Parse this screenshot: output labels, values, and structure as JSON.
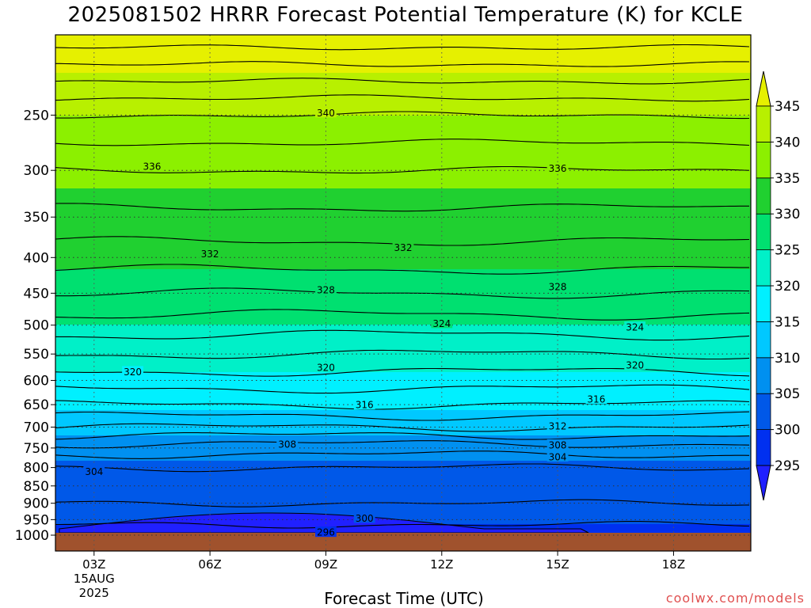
{
  "title": "2025081502 HRRR Forecast Potential Temperature (K) for KCLE",
  "credit": "coolwx.com/models",
  "chart_data": {
    "type": "heatmap",
    "title": "2025081502 HRRR Forecast Potential Temperature (K) for KCLE",
    "xlabel": "Forecast Time (UTC)",
    "ylabel": "",
    "x_ticks": [
      "03Z",
      "06Z",
      "09Z",
      "12Z",
      "15Z",
      "18Z"
    ],
    "x_tick_hours": [
      3,
      6,
      9,
      12,
      15,
      18
    ],
    "x_range_hours": [
      2,
      20
    ],
    "x_date_sublabel": [
      "15AUG",
      "2025"
    ],
    "y_ticks": [
      250,
      300,
      350,
      400,
      450,
      500,
      550,
      600,
      650,
      700,
      750,
      800,
      850,
      900,
      950,
      1000
    ],
    "y_range_hpa": [
      200,
      1000
    ],
    "y_log_scale": true,
    "grid": "dotted",
    "ground_color": "#a0522d",
    "colorbar": {
      "levels": [
        295,
        300,
        305,
        310,
        315,
        320,
        325,
        330,
        335,
        340,
        345
      ],
      "colors": [
        "#2020ff",
        "#0030f0",
        "#0058e8",
        "#0090f0",
        "#00c8ff",
        "#00f0ff",
        "#00f0c8",
        "#00e070",
        "#20d030",
        "#8cf000",
        "#b8f000",
        "#e6f000"
      ],
      "extend": "both"
    },
    "contour_interval": 2,
    "theta_profile": [
      {
        "p": 200,
        "theta": 348
      },
      {
        "p": 250,
        "theta": 340
      },
      {
        "p": 300,
        "theta": 336
      },
      {
        "p": 350,
        "theta": 333.5
      },
      {
        "p": 400,
        "theta": 331
      },
      {
        "p": 450,
        "theta": 328
      },
      {
        "p": 500,
        "theta": 325
      },
      {
        "p": 550,
        "theta": 322
      },
      {
        "p": 600,
        "theta": 319
      },
      {
        "p": 650,
        "theta": 316
      },
      {
        "p": 700,
        "theta": 312
      },
      {
        "p": 750,
        "theta": 307
      },
      {
        "p": 800,
        "theta": 304
      },
      {
        "p": 850,
        "theta": 303
      },
      {
        "p": 900,
        "theta": 302
      },
      {
        "p": 950,
        "theta": 300.5
      },
      {
        "p": 1000,
        "theta": 299
      }
    ],
    "contour_labels": [
      {
        "value": "340",
        "hour": 9,
        "p": 248
      },
      {
        "value": "336",
        "hour": 4.5,
        "p": 296
      },
      {
        "value": "336",
        "hour": 15,
        "p": 298
      },
      {
        "value": "332",
        "hour": 6,
        "p": 395
      },
      {
        "value": "332",
        "hour": 11,
        "p": 387
      },
      {
        "value": "328",
        "hour": 9,
        "p": 445
      },
      {
        "value": "328",
        "hour": 15,
        "p": 440
      },
      {
        "value": "324",
        "hour": 12,
        "p": 497
      },
      {
        "value": "324",
        "hour": 17,
        "p": 503
      },
      {
        "value": "320",
        "hour": 4,
        "p": 583
      },
      {
        "value": "320",
        "hour": 9,
        "p": 575
      },
      {
        "value": "320",
        "hour": 17,
        "p": 570
      },
      {
        "value": "316",
        "hour": 10,
        "p": 650
      },
      {
        "value": "316",
        "hour": 16,
        "p": 638
      },
      {
        "value": "312",
        "hour": 15,
        "p": 697
      },
      {
        "value": "308",
        "hour": 8,
        "p": 740
      },
      {
        "value": "308",
        "hour": 15,
        "p": 742
      },
      {
        "value": "304",
        "hour": 3,
        "p": 810
      },
      {
        "value": "304",
        "hour": 15,
        "p": 772
      },
      {
        "value": "300",
        "hour": 10,
        "p": 945
      },
      {
        "value": "296",
        "hour": 9,
        "p": 990
      }
    ]
  }
}
